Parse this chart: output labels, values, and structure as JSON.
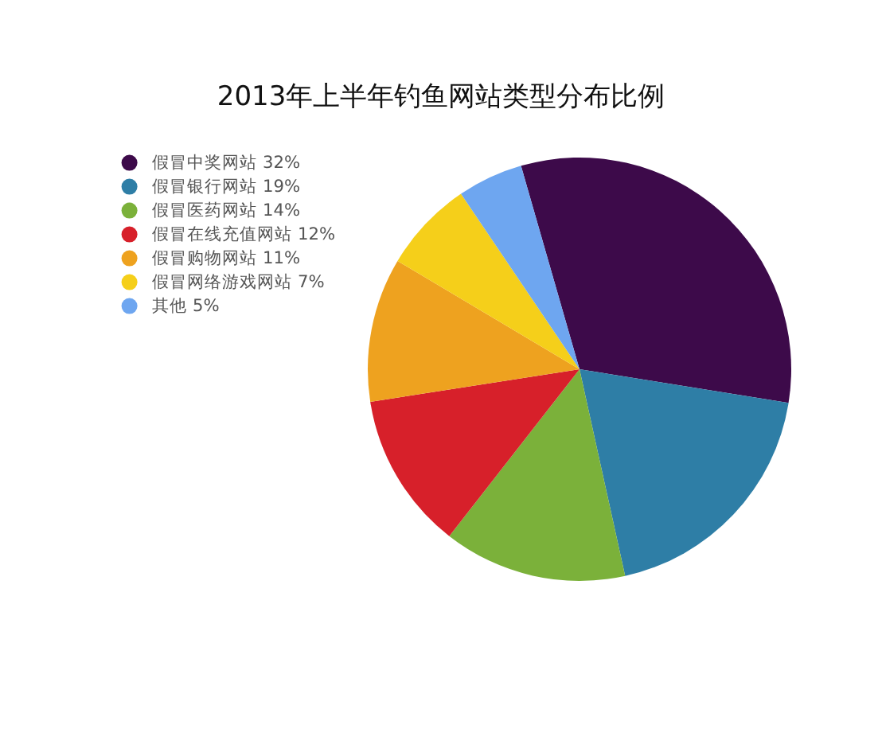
{
  "chart_data": {
    "type": "pie",
    "title": "2013年上半年钓鱼网站类型分布比例",
    "categories": [
      "假冒中奖网站 32%",
      "假冒银行网站 19%",
      "假冒医药网站 14%",
      "假冒在线充值网站 12%",
      "假冒购物网站 11%",
      "假冒网络游戏网站 7%",
      "其他 5%"
    ],
    "values": [
      32,
      19,
      14,
      12,
      11,
      7,
      5
    ],
    "colors": [
      "#3d0a4a",
      "#2e7ea6",
      "#7bb13a",
      "#d7202a",
      "#eea21f",
      "#f5cf1a",
      "#6ea6f0"
    ],
    "legend": "top left"
  }
}
